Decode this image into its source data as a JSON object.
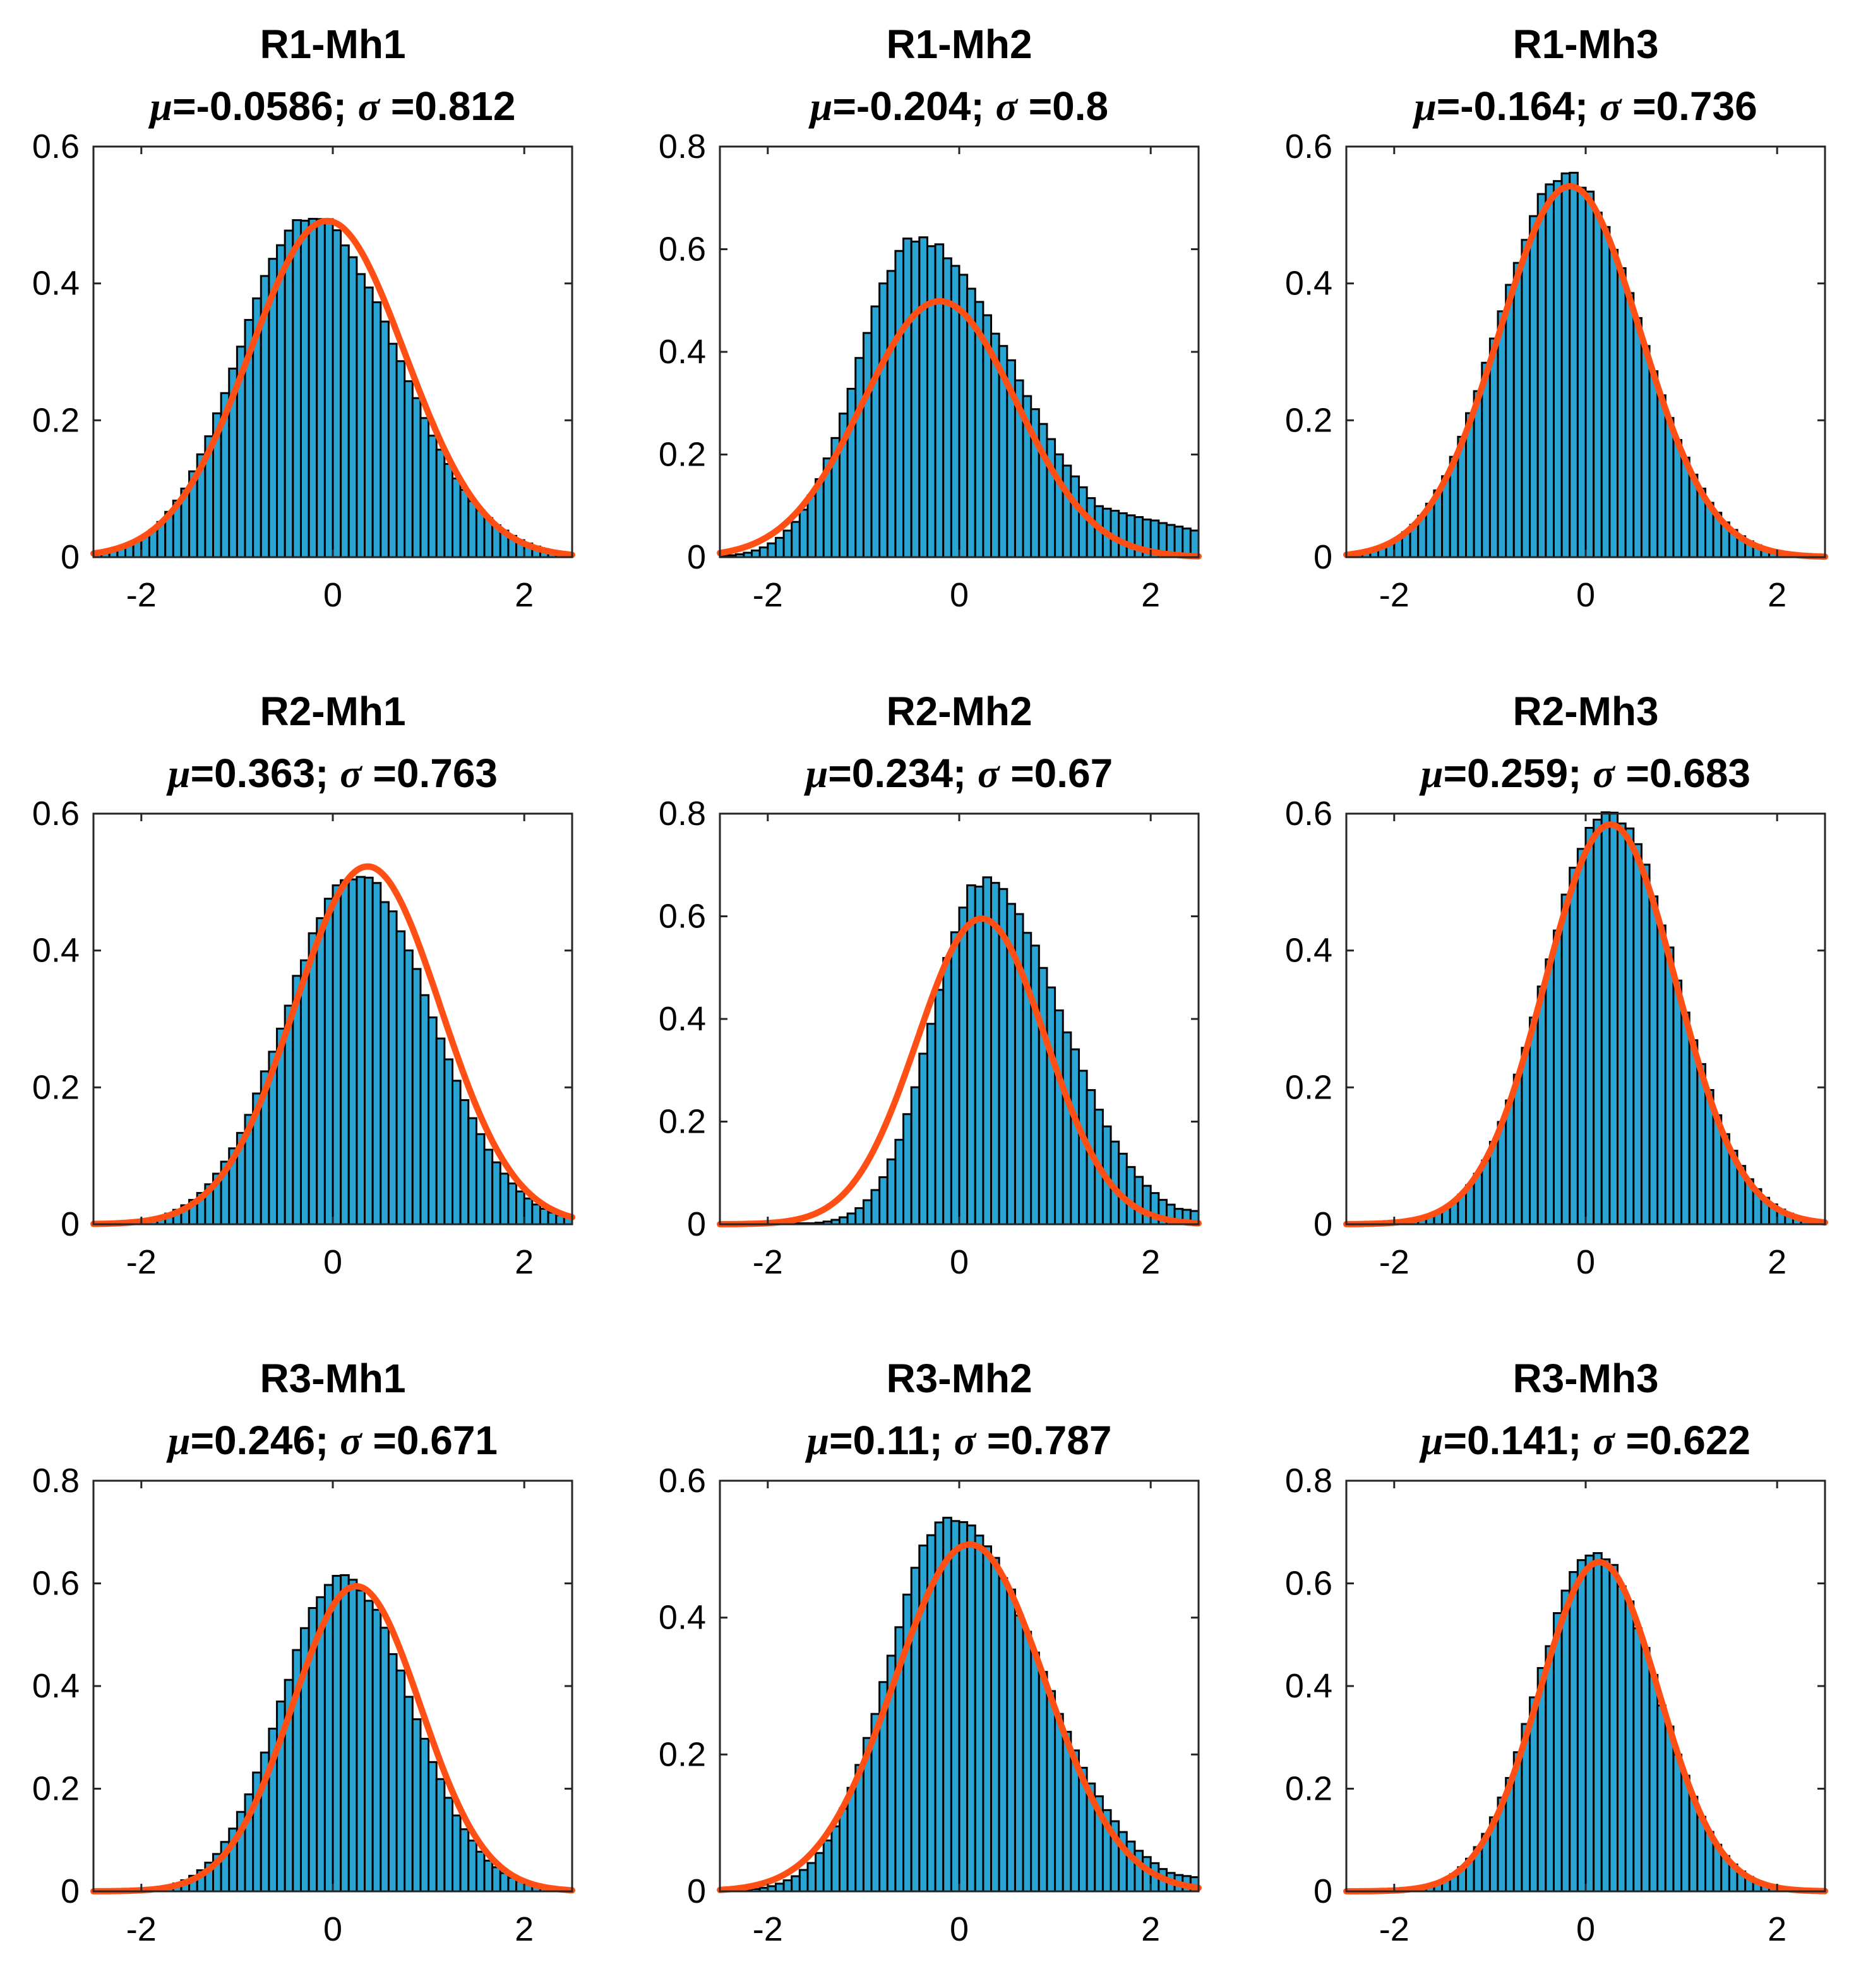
{
  "colors": {
    "bar_fill": "#2aa4d3",
    "bar_edge": "#000000",
    "fit_line": "#ff4f14"
  },
  "chart_data": [
    {
      "type": "bar",
      "title": "R1-Mh1",
      "mu_label": "μ",
      "mu": "-0.0586",
      "sigma_label": "σ",
      "sigma": "0.812",
      "xlim": [
        -2.5,
        2.5
      ],
      "ylim": [
        0,
        0.6
      ],
      "xticks": [
        "-2",
        "0",
        "2"
      ],
      "yticks": [
        "0",
        "0.2",
        "0.4",
        "0.6"
      ],
      "peak": 0.5,
      "peak_x": -0.25,
      "skew": 0.2,
      "tail": 0
    },
    {
      "type": "bar",
      "title": "R1-Mh2",
      "mu_label": "μ",
      "mu": "-0.204",
      "sigma_label": "σ",
      "sigma": "0.8",
      "xlim": [
        -2.5,
        2.5
      ],
      "ylim": [
        0,
        0.8
      ],
      "xticks": [
        "-2",
        "0",
        "2"
      ],
      "yticks": [
        "0",
        "0.2",
        "0.4",
        "0.6",
        "0.8"
      ],
      "peak": 0.62,
      "peak_x": -0.45,
      "skew": 0.45,
      "tail": 0.05
    },
    {
      "type": "bar",
      "title": "R1-Mh3",
      "mu_label": "μ",
      "mu": "-0.164",
      "sigma_label": "σ",
      "sigma": "0.736",
      "xlim": [
        -2.5,
        2.5
      ],
      "ylim": [
        0,
        0.6
      ],
      "xticks": [
        "-2",
        "0",
        "2"
      ],
      "yticks": [
        "0",
        "0.2",
        "0.4",
        "0.6"
      ],
      "peak": 0.56,
      "peak_x": -0.2,
      "skew": 0.05,
      "tail": 0
    },
    {
      "type": "bar",
      "title": "R2-Mh1",
      "mu_label": "μ",
      "mu": "0.363",
      "sigma_label": "σ",
      "sigma": "0.763",
      "xlim": [
        -2.5,
        2.5
      ],
      "ylim": [
        0,
        0.6
      ],
      "xticks": [
        "-2",
        "0",
        "2"
      ],
      "yticks": [
        "0",
        "0.2",
        "0.4",
        "0.6"
      ],
      "peak": 0.51,
      "peak_x": 0.25,
      "skew": 0.05,
      "tail": 0
    },
    {
      "type": "bar",
      "title": "R2-Mh2",
      "mu_label": "μ",
      "mu": "0.234",
      "sigma_label": "σ",
      "sigma": "0.67",
      "xlim": [
        -2.5,
        2.5
      ],
      "ylim": [
        0,
        0.8
      ],
      "xticks": [
        "-2",
        "0",
        "2"
      ],
      "yticks": [
        "0",
        "0.2",
        "0.4",
        "0.6",
        "0.8"
      ],
      "peak": 0.67,
      "peak_x": 0.25,
      "skew": 0.4,
      "tail": 0.025
    },
    {
      "type": "bar",
      "title": "R2-Mh3",
      "mu_label": "μ",
      "mu": "0.259",
      "sigma_label": "σ",
      "sigma": "0.683",
      "xlim": [
        -2.5,
        2.5
      ],
      "ylim": [
        0,
        0.6
      ],
      "xticks": [
        "-2",
        "0",
        "2"
      ],
      "yticks": [
        "0",
        "0.2",
        "0.4",
        "0.6"
      ],
      "peak": 0.6,
      "peak_x": 0.25,
      "skew": 0.03,
      "tail": 0
    },
    {
      "type": "bar",
      "title": "R3-Mh1",
      "mu_label": "μ",
      "mu": "0.246",
      "sigma_label": "σ",
      "sigma": "0.671",
      "xlim": [
        -2.5,
        2.5
      ],
      "ylim": [
        0,
        0.8
      ],
      "xticks": [
        "-2",
        "0",
        "2"
      ],
      "yticks": [
        "0",
        "0.2",
        "0.4",
        "0.6",
        "0.8"
      ],
      "peak": 0.615,
      "peak_x": 0.1,
      "skew": 0.1,
      "tail": 0
    },
    {
      "type": "bar",
      "title": "R3-Mh2",
      "mu_label": "μ",
      "mu": "0.11",
      "sigma_label": "σ",
      "sigma": "0.787",
      "xlim": [
        -2.5,
        2.5
      ],
      "ylim": [
        0,
        0.6
      ],
      "xticks": [
        "-2",
        "0",
        "2"
      ],
      "yticks": [
        "0",
        "0.2",
        "0.4",
        "0.6"
      ],
      "peak": 0.55,
      "peak_x": -0.1,
      "skew": 0.35,
      "tail": 0.02
    },
    {
      "type": "bar",
      "title": "R3-Mh3",
      "mu_label": "μ",
      "mu": "0.141",
      "sigma_label": "σ",
      "sigma": "0.622",
      "xlim": [
        -2.5,
        2.5
      ],
      "ylim": [
        0,
        0.8
      ],
      "xticks": [
        "-2",
        "0",
        "2"
      ],
      "yticks": [
        "0",
        "0.2",
        "0.4",
        "0.6",
        "0.8"
      ],
      "peak": 0.66,
      "peak_x": 0.1,
      "skew": 0.05,
      "tail": 0
    }
  ]
}
